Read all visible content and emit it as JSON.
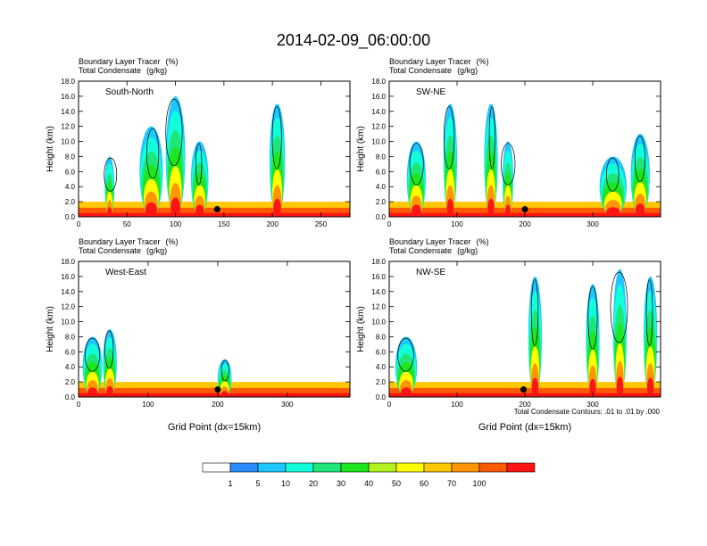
{
  "figure": {
    "title": "2014-02-09_06:00:00",
    "footnote": "Total Condensate Contours: .01 to .01 by .000"
  },
  "colorbar": {
    "labels": [
      "1",
      "5",
      "10",
      "20",
      "30",
      "40",
      "50",
      "60",
      "70",
      "100"
    ],
    "colors": [
      "#ffffff",
      "#2b8cff",
      "#1ec8ff",
      "#12ffdc",
      "#1ee678",
      "#1ee61e",
      "#b4f01e",
      "#ffff00",
      "#ffc800",
      "#ff9600",
      "#ff5a00",
      "#ff1414"
    ]
  },
  "chart_data": [
    {
      "type": "heatmap",
      "panel_label": "South-North",
      "var1": "Boundary Layer Tracer",
      "unit1": "(%)",
      "var2": "Total Condensate",
      "unit2": "(g/kg)",
      "ylabel": "Height (km)",
      "xlabel": "",
      "xlim": [
        0,
        280
      ],
      "ylim": [
        0,
        18
      ],
      "x_ticks": [
        0,
        50,
        100,
        150,
        200,
        250
      ],
      "y_ticks": [
        "0.0",
        "2.0",
        "4.0",
        "6.0",
        "8.0",
        "10.0",
        "12.0",
        "14.0",
        "16.0",
        "18.0"
      ],
      "marker_x": 143,
      "plumes": [
        {
          "x": 32,
          "top": 8,
          "w": 5
        },
        {
          "x": 75,
          "top": 12,
          "w": 12
        },
        {
          "x": 100,
          "top": 16,
          "w": 10
        },
        {
          "x": 125,
          "top": 10,
          "w": 9
        },
        {
          "x": 205,
          "top": 15,
          "w": 8
        }
      ]
    },
    {
      "type": "heatmap",
      "panel_label": "SW-NE",
      "var1": "Boundary Layer Tracer",
      "unit1": "(%)",
      "var2": "Total Condensate",
      "unit2": "(g/kg)",
      "ylabel": "Height (km)",
      "xlabel": "",
      "xlim": [
        0,
        400
      ],
      "ylim": [
        0,
        18
      ],
      "x_ticks": [
        0,
        100,
        200,
        300
      ],
      "y_ticks": [
        "0.0",
        "2.0",
        "4.0",
        "6.0",
        "8.0",
        "10.0",
        "12.0",
        "14.0",
        "16.0",
        "18.0"
      ],
      "marker_x": 200,
      "plumes": [
        {
          "x": 40,
          "top": 10,
          "w": 14
        },
        {
          "x": 90,
          "top": 15,
          "w": 10
        },
        {
          "x": 150,
          "top": 15,
          "w": 10
        },
        {
          "x": 175,
          "top": 10,
          "w": 8
        },
        {
          "x": 330,
          "top": 8,
          "w": 20
        },
        {
          "x": 370,
          "top": 11,
          "w": 14
        }
      ]
    },
    {
      "type": "heatmap",
      "panel_label": "West-East",
      "var1": "Boundary Layer Tracer",
      "unit1": "(%)",
      "var2": "Total Condensate",
      "unit2": "(g/kg)",
      "ylabel": "Height (km)",
      "xlabel": "Grid Point (dx=15km)",
      "xlim": [
        0,
        390
      ],
      "ylim": [
        0,
        18
      ],
      "x_ticks": [
        0,
        100,
        200,
        300
      ],
      "y_ticks": [
        "0.0",
        "2.0",
        "4.0",
        "6.0",
        "8.0",
        "10.0",
        "12.0",
        "14.0",
        "16.0",
        "18.0"
      ],
      "marker_x": 200,
      "plumes": [
        {
          "x": 20,
          "top": 8,
          "w": 14
        },
        {
          "x": 45,
          "top": 9,
          "w": 10
        },
        {
          "x": 210,
          "top": 5,
          "w": 10
        }
      ]
    },
    {
      "type": "heatmap",
      "panel_label": "NW-SE",
      "var1": "Boundary Layer Tracer",
      "unit1": "(%)",
      "var2": "Total Condensate",
      "unit2": "(g/kg)",
      "ylabel": "Height (km)",
      "xlabel": "Grid Point (dx=15km)",
      "xlim": [
        0,
        400
      ],
      "ylim": [
        0,
        18
      ],
      "x_ticks": [
        0,
        100,
        200,
        300
      ],
      "y_ticks": [
        "0.0",
        "2.0",
        "4.0",
        "6.0",
        "8.0",
        "10.0",
        "12.0",
        "14.0",
        "16.0",
        "18.0"
      ],
      "marker_x": 198,
      "plumes": [
        {
          "x": 25,
          "top": 8,
          "w": 16
        },
        {
          "x": 215,
          "top": 16,
          "w": 10
        },
        {
          "x": 300,
          "top": 15,
          "w": 10
        },
        {
          "x": 340,
          "top": 17,
          "w": 10
        },
        {
          "x": 385,
          "top": 16,
          "w": 10
        }
      ]
    }
  ]
}
